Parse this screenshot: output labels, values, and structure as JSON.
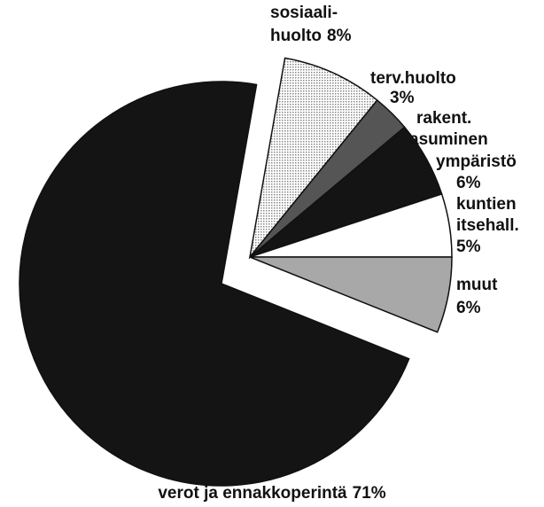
{
  "chart_data": {
    "type": "pie",
    "categories": [
      [
        "sosiaali-",
        "huolto"
      ],
      [
        "terv.huolto"
      ],
      [
        "rakent.",
        "asuminen",
        "ympäristö"
      ],
      [
        "kuntien",
        "itsehall."
      ],
      [
        "muut"
      ],
      [
        "verot ja ennakkoperintä"
      ]
    ],
    "values": [
      8,
      3,
      6,
      5,
      6,
      71
    ],
    "value_labels": [
      "8%",
      "3%",
      "6%",
      "5%",
      "6%",
      "71%"
    ],
    "colors": [
      "#d6d6d6",
      "#555555",
      "#141414",
      "#ffffff",
      "#a8a8a8",
      "#141414"
    ]
  }
}
